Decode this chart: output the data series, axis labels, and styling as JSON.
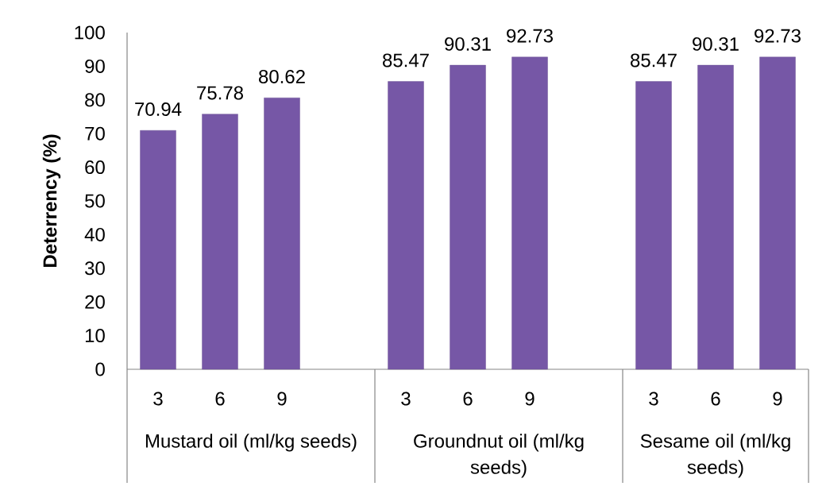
{
  "chart_data": {
    "type": "bar",
    "categories": [
      "3",
      "6",
      "9",
      null,
      "3",
      "6",
      "9",
      null,
      "3",
      "6",
      "9"
    ],
    "values": [
      70.94,
      75.78,
      80.62,
      null,
      85.47,
      90.31,
      92.73,
      null,
      85.47,
      90.31,
      92.73
    ],
    "color": "#7657a6",
    "ylabel": "Deterrency (%)",
    "ylim": [
      0,
      100
    ],
    "yticks": [
      0,
      10,
      20,
      30,
      40,
      50,
      60,
      70,
      80,
      90,
      100
    ],
    "data_labels": true,
    "annotations": [
      "Mustard oil (ml/kg seeds)",
      "Groundnut oil (ml/kg seeds)",
      "Sesame oil (ml/kg seeds)"
    ]
  }
}
